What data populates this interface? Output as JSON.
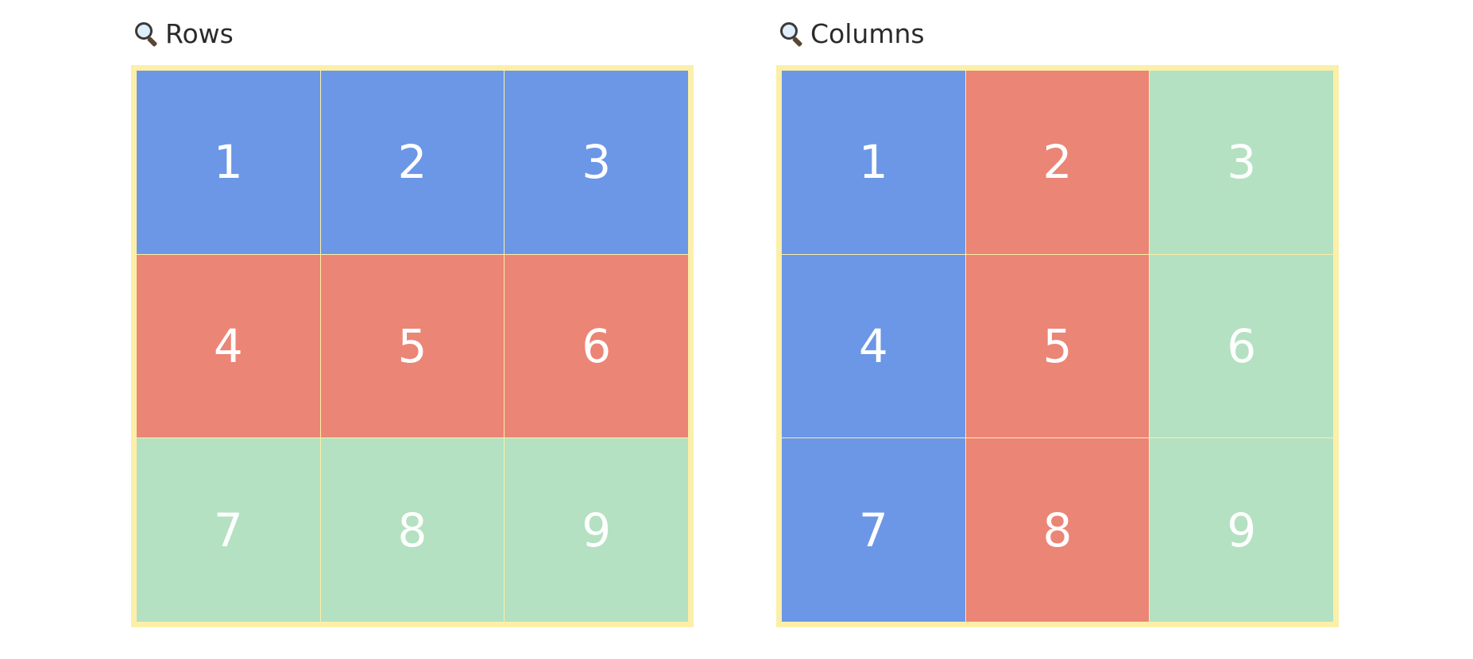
{
  "colors": {
    "blue": "#6b97e6",
    "red": "#eb8576",
    "green": "#b4e1c1",
    "frame": "#fcefa8",
    "label_text": "#ffffff"
  },
  "panels": [
    {
      "title": "Rows",
      "icon": "magnifier-icon",
      "cells": [
        {
          "label": "1",
          "color": "blue"
        },
        {
          "label": "2",
          "color": "blue"
        },
        {
          "label": "3",
          "color": "blue"
        },
        {
          "label": "4",
          "color": "red"
        },
        {
          "label": "5",
          "color": "red"
        },
        {
          "label": "6",
          "color": "red"
        },
        {
          "label": "7",
          "color": "green"
        },
        {
          "label": "8",
          "color": "green"
        },
        {
          "label": "9",
          "color": "green"
        }
      ]
    },
    {
      "title": "Columns",
      "icon": "magnifier-icon",
      "cells": [
        {
          "label": "1",
          "color": "blue"
        },
        {
          "label": "2",
          "color": "red"
        },
        {
          "label": "3",
          "color": "green"
        },
        {
          "label": "4",
          "color": "blue"
        },
        {
          "label": "5",
          "color": "red"
        },
        {
          "label": "6",
          "color": "green"
        },
        {
          "label": "7",
          "color": "blue"
        },
        {
          "label": "8",
          "color": "red"
        },
        {
          "label": "9",
          "color": "green"
        }
      ]
    }
  ]
}
